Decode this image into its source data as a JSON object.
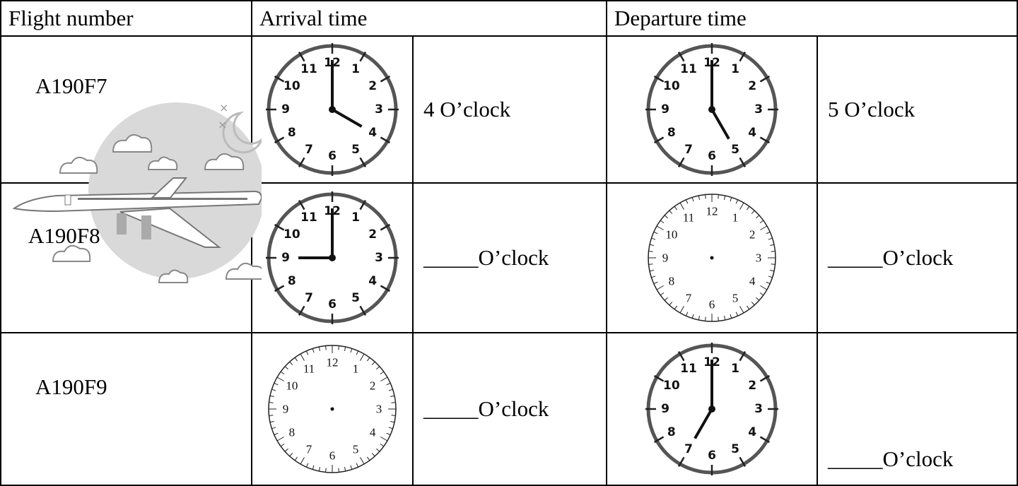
{
  "table": {
    "header": [
      "Flight number",
      "Arrival time",
      "Departure time"
    ],
    "clock_numerals": [
      12,
      1,
      2,
      3,
      4,
      5,
      6,
      7,
      8,
      9,
      10,
      11
    ],
    "rows": [
      {
        "flight": "A190F7",
        "arrival": {
          "hands": {
            "hour": 4,
            "minute": 0
          },
          "text": "4 O’clock"
        },
        "departure": {
          "hands": {
            "hour": 5,
            "minute": 0
          },
          "text": "5 O’clock"
        }
      },
      {
        "flight": "A190F8",
        "arrival": {
          "hands": {
            "hour": 9,
            "minute": 0
          },
          "text": "_____O’clock"
        },
        "departure": {
          "text": "_____O’clock"
        }
      },
      {
        "flight": "A190F9",
        "arrival": {
          "text": "_____O’clock"
        },
        "departure": {
          "hands": {
            "hour": 7,
            "minute": 0
          },
          "text": "_____O’clock"
        }
      }
    ]
  }
}
